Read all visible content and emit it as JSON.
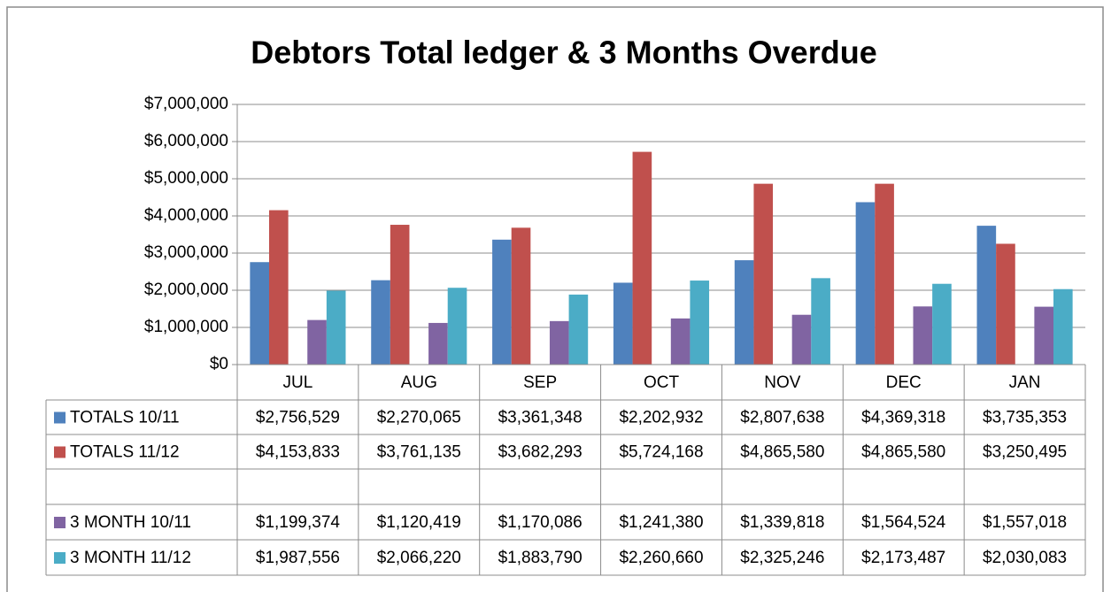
{
  "chart_data": {
    "type": "bar",
    "title": "Debtors Total ledger & 3 Months Overdue",
    "categories": [
      "JUL",
      "AUG",
      "SEP",
      "OCT",
      "NOV",
      "DEC",
      "JAN"
    ],
    "series": [
      {
        "name": "TOTALS 10/11",
        "color": "#4f81bd",
        "values": [
          2756529,
          2270065,
          3361348,
          2202932,
          2807638,
          4369318,
          3735353
        ],
        "value_labels": [
          "$2,756,529",
          "$2,270,065",
          "$3,361,348",
          "$2,202,932",
          "$2,807,638",
          "$4,369,318",
          "$3,735,353"
        ]
      },
      {
        "name": "TOTALS 11/12",
        "color": "#c0504d",
        "values": [
          4153833,
          3761135,
          3682293,
          5724168,
          4865580,
          4865580,
          3250495
        ],
        "value_labels": [
          "$4,153,833",
          "$3,761,135",
          "$3,682,293",
          "$5,724,168",
          "$4,865,580",
          "$4,865,580",
          "$3,250,495"
        ]
      },
      {
        "name": "3 MONTH 10/11",
        "color": "#8064a2",
        "values": [
          1199374,
          1120419,
          1170086,
          1241380,
          1339818,
          1564524,
          1557018
        ],
        "value_labels": [
          "$1,199,374",
          "$1,120,419",
          "$1,170,086",
          "$1,241,380",
          "$1,339,818",
          "$1,564,524",
          "$1,557,018"
        ]
      },
      {
        "name": "3 MONTH 11/12",
        "color": "#4bacc6",
        "values": [
          1987556,
          2066220,
          1883790,
          2260660,
          2325246,
          2173487,
          2030083
        ],
        "value_labels": [
          "$1,987,556",
          "$2,066,220",
          "$1,883,790",
          "$2,260,660",
          "$2,325,246",
          "$2,173,487",
          "$2,030,083"
        ]
      }
    ],
    "ylim": [
      0,
      7000000
    ],
    "yticks": [
      {
        "value": 0,
        "label": "$0"
      },
      {
        "value": 1000000,
        "label": "$1,000,000"
      },
      {
        "value": 2000000,
        "label": "$2,000,000"
      },
      {
        "value": 3000000,
        "label": "$3,000,000"
      },
      {
        "value": 4000000,
        "label": "$4,000,000"
      },
      {
        "value": 5000000,
        "label": "$5,000,000"
      },
      {
        "value": 6000000,
        "label": "$6,000,000"
      },
      {
        "value": 7000000,
        "label": "$7,000,000"
      }
    ],
    "grid": true
  }
}
